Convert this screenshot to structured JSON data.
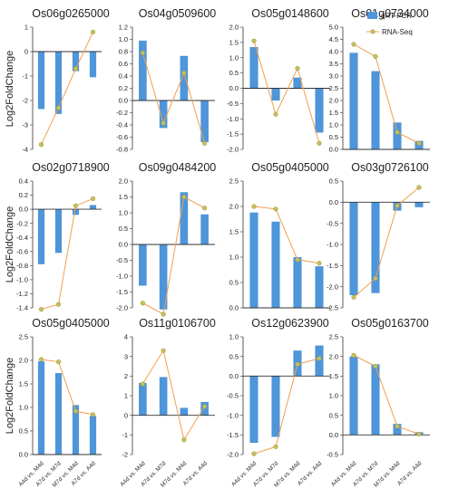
{
  "figure": {
    "y_axis_label": "Log2FoldChange",
    "legend": {
      "bar_label": "qRT-PCR",
      "line_label": "RNA-Seq",
      "placement": "top-right"
    },
    "colors": {
      "bar": "#4e95d9",
      "line": "#f0a050",
      "marker_fill": "#c8c060",
      "marker_stroke": "#a0a040"
    }
  },
  "chart_data": [
    {
      "type": "bar",
      "title": "Os06g0265000",
      "categories": [
        "A4d vs. M4d",
        "A7d vs. M7d",
        "M7d vs. M4d",
        "A7d vs. A4d"
      ],
      "ylim": [
        -4,
        1
      ],
      "yticks": [
        -4,
        -3,
        -2,
        -1,
        0,
        1
      ],
      "series": [
        {
          "name": "qRT-PCR",
          "values": [
            -2.35,
            -2.55,
            -0.8,
            -1.05
          ]
        },
        {
          "name": "RNA-Seq",
          "values": [
            -3.8,
            -2.3,
            -0.7,
            0.8
          ]
        }
      ]
    },
    {
      "type": "bar",
      "title": "Os04g0509600",
      "categories": [
        "A4d vs. M4d",
        "A7d vs. M7d",
        "M7d vs. M4d",
        "A7d vs. A4d"
      ],
      "ylim": [
        -0.8,
        1.2
      ],
      "yticks": [
        -0.8,
        -0.6,
        -0.4,
        -0.2,
        0,
        0.2,
        0.4,
        0.6,
        0.8,
        1,
        1.2
      ],
      "series": [
        {
          "name": "qRT-PCR",
          "values": [
            0.98,
            -0.45,
            0.73,
            -0.68
          ]
        },
        {
          "name": "RNA-Seq",
          "values": [
            0.78,
            -0.37,
            0.45,
            -0.7
          ]
        }
      ]
    },
    {
      "type": "bar",
      "title": "Os05g0148600",
      "categories": [
        "A4d vs. M4d",
        "A7d vs. M7d",
        "M7d vs. M4d",
        "A7d vs. A4d"
      ],
      "ylim": [
        -2,
        2
      ],
      "yticks": [
        -2,
        -1.5,
        -1,
        -0.5,
        0,
        0.5,
        1,
        1.5,
        2
      ],
      "series": [
        {
          "name": "qRT-PCR",
          "values": [
            1.35,
            -0.4,
            0.35,
            -1.45
          ]
        },
        {
          "name": "RNA-Seq",
          "values": [
            1.55,
            -0.85,
            0.65,
            -1.8
          ]
        }
      ]
    },
    {
      "type": "bar",
      "title": "Os01g0734000",
      "categories": [
        "A4d vs. M4d",
        "A7d vs. M7d",
        "M7d vs. M4d",
        "A7d vs. A4d"
      ],
      "ylim": [
        0,
        5
      ],
      "yticks": [
        0,
        0.5,
        1,
        1.5,
        2,
        2.5,
        3,
        3.5,
        4,
        4.5,
        5
      ],
      "series": [
        {
          "name": "qRT-PCR",
          "values": [
            3.95,
            3.2,
            1.1,
            0.35
          ]
        },
        {
          "name": "RNA-Seq",
          "values": [
            4.3,
            3.8,
            0.7,
            0.25
          ]
        }
      ]
    },
    {
      "type": "bar",
      "title": "Os02g0718900",
      "categories": [
        "A4d vs. M4d",
        "A7d vs. M7d",
        "M7d vs. M4d",
        "A7d vs. A4d"
      ],
      "ylim": [
        -1.4,
        0.4
      ],
      "yticks": [
        -1.4,
        -1.2,
        -1,
        -0.8,
        -0.6,
        -0.4,
        -0.2,
        0,
        0.2,
        0.4
      ],
      "series": [
        {
          "name": "qRT-PCR",
          "values": [
            -0.78,
            -0.62,
            -0.08,
            0.06
          ]
        },
        {
          "name": "RNA-Seq",
          "values": [
            -1.42,
            -1.35,
            0.05,
            0.15
          ]
        }
      ]
    },
    {
      "type": "bar",
      "title": "Os09g0484200",
      "categories": [
        "A4d vs. M4d",
        "A7d vs. M7d",
        "M7d vs. M4d",
        "A7d vs. A4d"
      ],
      "ylim": [
        -2,
        2
      ],
      "yticks": [
        -2,
        -1.5,
        -1,
        -0.5,
        0,
        0.5,
        1,
        1.5,
        2
      ],
      "series": [
        {
          "name": "qRT-PCR",
          "values": [
            -1.3,
            -2.05,
            1.65,
            0.95
          ]
        },
        {
          "name": "RNA-Seq",
          "values": [
            -1.85,
            -2.2,
            1.5,
            1.15
          ]
        }
      ]
    },
    {
      "type": "bar",
      "title": "Os05g0405000",
      "categories": [
        "A4d vs. M4d",
        "A7d vs. M7d",
        "M7d vs. M4d",
        "A7d vs. A4d"
      ],
      "ylim": [
        0,
        2.5
      ],
      "yticks": [
        0,
        0.5,
        1,
        1.5,
        2,
        2.5
      ],
      "series": [
        {
          "name": "qRT-PCR",
          "values": [
            1.88,
            1.7,
            1.0,
            0.82
          ]
        },
        {
          "name": "RNA-Seq",
          "values": [
            2.0,
            1.95,
            0.95,
            0.88
          ]
        }
      ]
    },
    {
      "type": "bar",
      "title": "Os03g0726100",
      "categories": [
        "A4d vs. M4d",
        "A7d vs. M7d",
        "M7d vs. M4d",
        "A7d vs. A4d"
      ],
      "ylim": [
        -2.5,
        0.5
      ],
      "yticks": [
        -2.5,
        -2,
        -1.5,
        -1,
        -0.5,
        0,
        0.5
      ],
      "series": [
        {
          "name": "qRT-PCR",
          "values": [
            -2.2,
            -2.15,
            -0.2,
            -0.12
          ]
        },
        {
          "name": "RNA-Seq",
          "values": [
            -2.25,
            -1.8,
            -0.08,
            0.35
          ]
        }
      ]
    },
    {
      "type": "bar",
      "title": "Os05g0405000",
      "categories": [
        "A4d vs. M4d",
        "A7d vs. M7d",
        "M7d vs. M4d",
        "A7d vs. A4d"
      ],
      "ylim": [
        0,
        2.5
      ],
      "yticks": [
        0,
        0.5,
        1,
        1.5,
        2,
        2.5
      ],
      "series": [
        {
          "name": "qRT-PCR",
          "values": [
            1.98,
            1.73,
            1.05,
            0.82
          ]
        },
        {
          "name": "RNA-Seq",
          "values": [
            2.02,
            1.97,
            0.92,
            0.85
          ]
        }
      ]
    },
    {
      "type": "bar",
      "title": "Os11g0106700",
      "categories": [
        "A4d vs. M4d",
        "A7d vs. M7d",
        "M7d vs. M4d",
        "A7d vs. A4d"
      ],
      "ylim": [
        -2,
        4
      ],
      "yticks": [
        -2,
        -1,
        0,
        1,
        2,
        3,
        4
      ],
      "series": [
        {
          "name": "qRT-PCR",
          "values": [
            1.65,
            1.95,
            0.38,
            0.68
          ]
        },
        {
          "name": "RNA-Seq",
          "values": [
            1.6,
            3.3,
            -1.25,
            0.45
          ]
        }
      ]
    },
    {
      "type": "bar",
      "title": "Os12g0623900",
      "categories": [
        "A4d vs. M4d",
        "A7d vs. M7d",
        "M7d vs. M4d",
        "A7d vs. A4d"
      ],
      "ylim": [
        -2,
        1
      ],
      "yticks": [
        -2,
        -1.5,
        -1,
        -0.5,
        0,
        0.5,
        1
      ],
      "series": [
        {
          "name": "qRT-PCR",
          "values": [
            -1.7,
            -1.55,
            0.65,
            0.78
          ]
        },
        {
          "name": "RNA-Seq",
          "values": [
            -1.98,
            -1.8,
            0.3,
            0.45
          ]
        }
      ]
    },
    {
      "type": "bar",
      "title": "Os05g0163700",
      "categories": [
        "A4d vs. M4d",
        "A7d vs. M7d",
        "M7d vs. M4d",
        "A7d vs. A4d"
      ],
      "ylim": [
        -0.5,
        2.5
      ],
      "yticks": [
        -0.5,
        0,
        0.5,
        1,
        1.5,
        2,
        2.5
      ],
      "series": [
        {
          "name": "qRT-PCR",
          "values": [
            2.0,
            1.8,
            0.28,
            0.07
          ]
        },
        {
          "name": "RNA-Seq",
          "values": [
            2.03,
            1.75,
            0.22,
            0.02
          ]
        }
      ]
    }
  ]
}
